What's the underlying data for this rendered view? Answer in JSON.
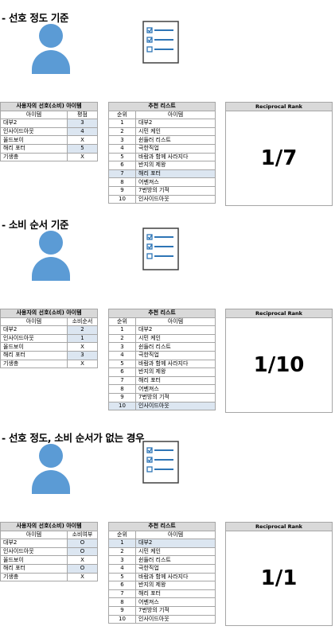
{
  "sections": [
    {
      "heading": "- 선호 정도 기준",
      "pref_table": {
        "title": "사용자의 선호(소비) 아이템",
        "col_item": "아이템",
        "col_value": "평점",
        "rows": [
          {
            "item": "대부2",
            "value": "3",
            "hl": true
          },
          {
            "item": "인사이드아웃",
            "value": "4",
            "hl": true
          },
          {
            "item": "올드보이",
            "value": "X",
            "hl": false
          },
          {
            "item": "해리 포터",
            "value": "5",
            "hl": true
          },
          {
            "item": "기생충",
            "value": "X",
            "hl": false
          }
        ]
      },
      "rec_table": {
        "title": "추천 리스트",
        "col_rank": "순위",
        "col_item": "아이템",
        "rows": [
          {
            "rank": "1",
            "item": "대부2",
            "hl": false
          },
          {
            "rank": "2",
            "item": "시민 케인",
            "hl": false
          },
          {
            "rank": "3",
            "item": "쉰들러 리스트",
            "hl": false
          },
          {
            "rank": "4",
            "item": "극한직업",
            "hl": false
          },
          {
            "rank": "5",
            "item": "바람과 함께 사라지다",
            "hl": false
          },
          {
            "rank": "6",
            "item": "반지의 제왕",
            "hl": false
          },
          {
            "rank": "7",
            "item": "해리 포터",
            "hl": true
          },
          {
            "rank": "8",
            "item": "어벤져스",
            "hl": false
          },
          {
            "rank": "9",
            "item": "7번방의 기적",
            "hl": false
          },
          {
            "rank": "10",
            "item": "인사이드아웃",
            "hl": false
          }
        ]
      },
      "rr": {
        "title": "Reciprocal Rank",
        "value": "1/7"
      }
    },
    {
      "heading": "- 소비 순서 기준",
      "pref_table": {
        "title": "사용자의 선호(소비) 아이템",
        "col_item": "아이템",
        "col_value": "소비순서",
        "rows": [
          {
            "item": "대부2",
            "value": "2",
            "hl": true
          },
          {
            "item": "인사이드아웃",
            "value": "1",
            "hl": true
          },
          {
            "item": "올드보이",
            "value": "X",
            "hl": false
          },
          {
            "item": "해리 포터",
            "value": "3",
            "hl": true
          },
          {
            "item": "기생충",
            "value": "X",
            "hl": false
          }
        ]
      },
      "rec_table": {
        "title": "추천 리스트",
        "col_rank": "순위",
        "col_item": "아이템",
        "rows": [
          {
            "rank": "1",
            "item": "대부2",
            "hl": false
          },
          {
            "rank": "2",
            "item": "시민 케인",
            "hl": false
          },
          {
            "rank": "3",
            "item": "쉰들러 리스트",
            "hl": false
          },
          {
            "rank": "4",
            "item": "극한직업",
            "hl": false
          },
          {
            "rank": "5",
            "item": "바람과 함께 사라지다",
            "hl": false
          },
          {
            "rank": "6",
            "item": "반지의 제왕",
            "hl": false
          },
          {
            "rank": "7",
            "item": "해리 포터",
            "hl": false
          },
          {
            "rank": "8",
            "item": "어벤져스",
            "hl": false
          },
          {
            "rank": "9",
            "item": "7번방의 기적",
            "hl": false
          },
          {
            "rank": "10",
            "item": "인사이드아웃",
            "hl": true
          }
        ]
      },
      "rr": {
        "title": "Reciprocal Rank",
        "value": "1/10"
      }
    },
    {
      "heading": "- 선호 정도, 소비 순서가 없는 경우",
      "pref_table": {
        "title": "사용자의 선호(소비) 아이템",
        "col_item": "아이템",
        "col_value": "소비여부",
        "rows": [
          {
            "item": "대부2",
            "value": "O",
            "hl": true
          },
          {
            "item": "인사이드아웃",
            "value": "O",
            "hl": true
          },
          {
            "item": "올드보이",
            "value": "X",
            "hl": false
          },
          {
            "item": "해리 포터",
            "value": "O",
            "hl": true
          },
          {
            "item": "기생충",
            "value": "X",
            "hl": false
          }
        ]
      },
      "rec_table": {
        "title": "추천 리스트",
        "col_rank": "순위",
        "col_item": "아이템",
        "rows": [
          {
            "rank": "1",
            "item": "대부2",
            "hl": true
          },
          {
            "rank": "2",
            "item": "시민 케인",
            "hl": false
          },
          {
            "rank": "3",
            "item": "쉰들러 리스트",
            "hl": false
          },
          {
            "rank": "4",
            "item": "극한직업",
            "hl": false
          },
          {
            "rank": "5",
            "item": "바람과 함께 사라지다",
            "hl": false
          },
          {
            "rank": "6",
            "item": "반지의 제왕",
            "hl": false
          },
          {
            "rank": "7",
            "item": "해리 포터",
            "hl": false
          },
          {
            "rank": "8",
            "item": "어벤져스",
            "hl": false
          },
          {
            "rank": "9",
            "item": "7번방의 기적",
            "hl": false
          },
          {
            "rank": "10",
            "item": "인사이드아웃",
            "hl": false
          }
        ]
      },
      "rr": {
        "title": "Reciprocal Rank",
        "value": "1/1"
      }
    }
  ],
  "colors": {
    "highlight": "#dce6f1",
    "header": "#d9d9d9",
    "person": "#5b9bd5",
    "border": "#a6a6a6"
  },
  "icons": {
    "person": "user-icon",
    "checklist": "checklist-icon"
  }
}
